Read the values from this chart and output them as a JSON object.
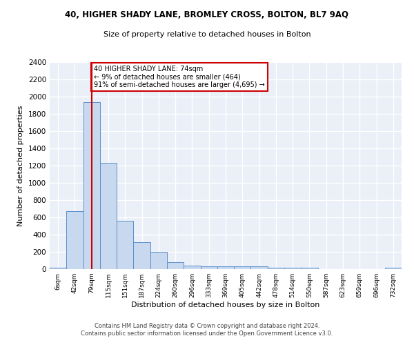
{
  "title1": "40, HIGHER SHADY LANE, BROMLEY CROSS, BOLTON, BL7 9AQ",
  "title2": "Size of property relative to detached houses in Bolton",
  "xlabel": "Distribution of detached houses by size in Bolton",
  "ylabel": "Number of detached properties",
  "bar_color": "#c8d8ee",
  "bar_edge_color": "#5b8fc9",
  "bg_color": "#eaeff8",
  "grid_color": "#ffffff",
  "categories": [
    "6sqm",
    "42sqm",
    "79sqm",
    "115sqm",
    "151sqm",
    "187sqm",
    "224sqm",
    "260sqm",
    "296sqm",
    "333sqm",
    "369sqm",
    "405sqm",
    "442sqm",
    "478sqm",
    "514sqm",
    "550sqm",
    "587sqm",
    "623sqm",
    "659sqm",
    "696sqm",
    "732sqm"
  ],
  "values": [
    20,
    670,
    1940,
    1230,
    560,
    310,
    200,
    80,
    40,
    35,
    30,
    35,
    30,
    20,
    20,
    20,
    0,
    0,
    0,
    0,
    20
  ],
  "red_line_x": 2,
  "annotation_lines": [
    "40 HIGHER SHADY LANE: 74sqm",
    "← 9% of detached houses are smaller (464)",
    "91% of semi-detached houses are larger (4,695) →"
  ],
  "ylim": [
    0,
    2400
  ],
  "yticks": [
    0,
    200,
    400,
    600,
    800,
    1000,
    1200,
    1400,
    1600,
    1800,
    2000,
    2200,
    2400
  ],
  "footer": "Contains HM Land Registry data © Crown copyright and database right 2024.\nContains public sector information licensed under the Open Government Licence v3.0.",
  "red_line_color": "#cc0000",
  "annotation_box_edge": "#cc0000"
}
